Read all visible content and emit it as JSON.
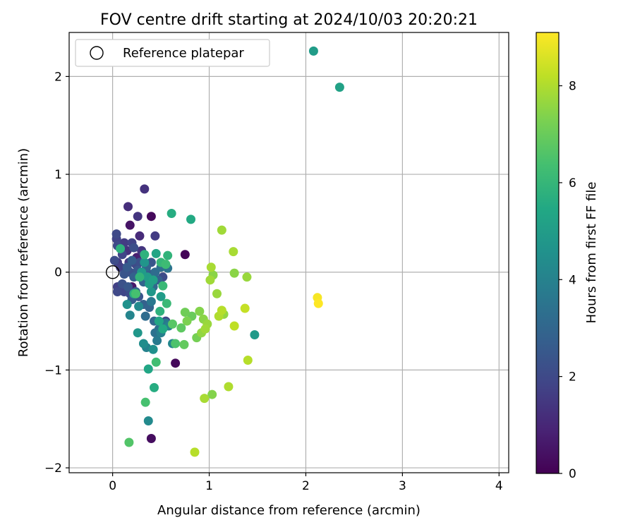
{
  "chart_data": {
    "type": "scatter",
    "title": "FOV centre drift starting at 2024/10/03 20:20:21",
    "xlabel": "Angular distance from reference (arcmin)",
    "ylabel": "Rotation from reference (arcmin)",
    "xlim": [
      -0.45,
      4.1
    ],
    "ylim": [
      -2.05,
      2.45
    ],
    "xticks": [
      0,
      1,
      2,
      3,
      4
    ],
    "yticks": [
      -2,
      -1,
      0,
      1,
      2
    ],
    "xtick_labels": [
      "0",
      "1",
      "2",
      "3",
      "4"
    ],
    "ytick_labels": [
      "−2",
      "−1",
      "0",
      "1",
      "2"
    ],
    "grid": true,
    "legend": {
      "placement": "top-left",
      "label": "Reference platepar",
      "reference_point": [
        0,
        0
      ]
    },
    "colorbar": {
      "label": "Hours from first FF file",
      "range": [
        0,
        9.1
      ],
      "ticks": [
        0,
        2,
        4,
        6,
        8
      ],
      "tick_labels": [
        "0",
        "2",
        "4",
        "6",
        "8"
      ],
      "colormap": [
        "#440154",
        "#482475",
        "#414487",
        "#355f8d",
        "#2a788e",
        "#21918c",
        "#22a884",
        "#44bf70",
        "#7ad151",
        "#bddf26",
        "#fde725"
      ]
    },
    "points": [
      {
        "x": 0.4,
        "y": 0.57,
        "h": 0.2
      },
      {
        "x": 0.75,
        "y": 0.18,
        "h": 0.1
      },
      {
        "x": 0.65,
        "y": -0.93,
        "h": 0.2
      },
      {
        "x": 0.4,
        "y": -1.7,
        "h": 0.3
      },
      {
        "x": 0.18,
        "y": 0.48,
        "h": 0.5
      },
      {
        "x": 0.2,
        "y": -0.15,
        "h": 0.6
      },
      {
        "x": 0.25,
        "y": 0.15,
        "h": 0.8
      },
      {
        "x": 0.33,
        "y": 0.85,
        "h": 1.3
      },
      {
        "x": 0.16,
        "y": 0.67,
        "h": 1.2
      },
      {
        "x": 0.26,
        "y": 0.57,
        "h": 1.4
      },
      {
        "x": 0.28,
        "y": 0.37,
        "h": 1.1
      },
      {
        "x": 0.44,
        "y": 0.37,
        "h": 1.6
      },
      {
        "x": 0.04,
        "y": 0.39,
        "h": 2.0
      },
      {
        "x": 0.04,
        "y": 0.34,
        "h": 1.8
      },
      {
        "x": 0.05,
        "y": 0.27,
        "h": 2.0
      },
      {
        "x": 0.02,
        "y": 0.12,
        "h": 2.1
      },
      {
        "x": 0.05,
        "y": 0.1,
        "h": 1.5
      },
      {
        "x": 0.08,
        "y": 0.05,
        "h": 1.7
      },
      {
        "x": 0.1,
        "y": 0.18,
        "h": 1.9
      },
      {
        "x": 0.12,
        "y": 0.3,
        "h": 1.6
      },
      {
        "x": 0.15,
        "y": 0.22,
        "h": 1.3
      },
      {
        "x": 0.17,
        "y": 0.1,
        "h": 1.5
      },
      {
        "x": 0.2,
        "y": 0.3,
        "h": 1.8
      },
      {
        "x": 0.22,
        "y": 0.25,
        "h": 2.2
      },
      {
        "x": 0.24,
        "y": 0.08,
        "h": 2.0
      },
      {
        "x": 0.12,
        "y": -0.02,
        "h": 2.4
      },
      {
        "x": 0.15,
        "y": 0.05,
        "h": 2.6
      },
      {
        "x": 0.18,
        "y": 0.0,
        "h": 2.3
      },
      {
        "x": 0.2,
        "y": 0.12,
        "h": 2.7
      },
      {
        "x": 0.22,
        "y": -0.05,
        "h": 2.8
      },
      {
        "x": 0.26,
        "y": 0.02,
        "h": 2.5
      },
      {
        "x": 0.28,
        "y": 0.1,
        "h": 2.2
      },
      {
        "x": 0.3,
        "y": 0.22,
        "h": 1.4
      },
      {
        "x": 0.32,
        "y": -0.1,
        "h": 2.9
      },
      {
        "x": 0.35,
        "y": 0.05,
        "h": 3.0
      },
      {
        "x": 0.38,
        "y": -0.02,
        "h": 2.6
      },
      {
        "x": 0.4,
        "y": 0.1,
        "h": 2.4
      },
      {
        "x": 0.42,
        "y": -0.15,
        "h": 3.1
      },
      {
        "x": 0.44,
        "y": 0.0,
        "h": 3.2
      },
      {
        "x": 0.47,
        "y": -0.08,
        "h": 2.8
      },
      {
        "x": 0.5,
        "y": 0.05,
        "h": 3.3
      },
      {
        "x": 0.52,
        "y": -0.05,
        "h": 2.1
      },
      {
        "x": 0.55,
        "y": -0.5,
        "h": 1.9
      },
      {
        "x": 0.57,
        "y": 0.04,
        "h": 3.5
      },
      {
        "x": 0.05,
        "y": -0.15,
        "h": 1.7
      },
      {
        "x": 0.05,
        "y": -0.2,
        "h": 2.0
      },
      {
        "x": 0.1,
        "y": -0.12,
        "h": 2.3
      },
      {
        "x": 0.12,
        "y": -0.2,
        "h": 1.9
      },
      {
        "x": 0.16,
        "y": -0.15,
        "h": 2.5
      },
      {
        "x": 0.18,
        "y": -0.22,
        "h": 2.1
      },
      {
        "x": 0.2,
        "y": -0.28,
        "h": 2.7
      },
      {
        "x": 0.24,
        "y": -0.2,
        "h": 3.0
      },
      {
        "x": 0.27,
        "y": -0.25,
        "h": 2.4
      },
      {
        "x": 0.32,
        "y": -0.33,
        "h": 2.8
      },
      {
        "x": 0.34,
        "y": -0.45,
        "h": 3.2
      },
      {
        "x": 0.38,
        "y": -0.36,
        "h": 2.9
      },
      {
        "x": 0.4,
        "y": -0.3,
        "h": 3.6
      },
      {
        "x": 0.43,
        "y": -0.5,
        "h": 3.1
      },
      {
        "x": 0.44,
        "y": -0.62,
        "h": 3.4
      },
      {
        "x": 0.46,
        "y": -0.7,
        "h": 3.7
      },
      {
        "x": 0.48,
        "y": -0.58,
        "h": 3.3
      },
      {
        "x": 0.5,
        "y": -0.62,
        "h": 3.9
      },
      {
        "x": 0.55,
        "y": -0.52,
        "h": 3.6
      },
      {
        "x": 0.58,
        "y": -0.55,
        "h": 4.0
      },
      {
        "x": 0.62,
        "y": -0.73,
        "h": 4.2
      },
      {
        "x": 0.18,
        "y": -0.44,
        "h": 4.1
      },
      {
        "x": 0.27,
        "y": -0.35,
        "h": 4.3
      },
      {
        "x": 0.32,
        "y": -0.73,
        "h": 4.4
      },
      {
        "x": 0.35,
        "y": -0.77,
        "h": 4.0
      },
      {
        "x": 0.37,
        "y": -1.52,
        "h": 4.3
      },
      {
        "x": 0.42,
        "y": -0.79,
        "h": 4.5
      },
      {
        "x": 0.15,
        "y": -0.33,
        "h": 4.6
      },
      {
        "x": 0.26,
        "y": -0.62,
        "h": 4.8
      },
      {
        "x": 0.3,
        "y": 0.0,
        "h": 4.9
      },
      {
        "x": 0.33,
        "y": 0.1,
        "h": 4.7
      },
      {
        "x": 0.36,
        "y": -0.05,
        "h": 5.0
      },
      {
        "x": 0.38,
        "y": -0.12,
        "h": 5.1
      },
      {
        "x": 0.4,
        "y": -0.2,
        "h": 4.8
      },
      {
        "x": 0.42,
        "y": -0.08,
        "h": 5.2
      },
      {
        "x": 0.45,
        "y": 0.19,
        "h": 5.3
      },
      {
        "x": 0.48,
        "y": -0.5,
        "h": 5.4
      },
      {
        "x": 0.5,
        "y": -0.25,
        "h": 5.0
      },
      {
        "x": 0.52,
        "y": -0.58,
        "h": 5.5
      },
      {
        "x": 0.37,
        "y": -0.99,
        "h": 5.4
      },
      {
        "x": 0.43,
        "y": -1.18,
        "h": 5.6
      },
      {
        "x": 2.08,
        "y": 2.26,
        "h": 5.0
      },
      {
        "x": 2.35,
        "y": 1.89,
        "h": 5.2
      },
      {
        "x": 1.47,
        "y": -0.64,
        "h": 4.9
      },
      {
        "x": 0.61,
        "y": 0.6,
        "h": 5.6
      },
      {
        "x": 0.81,
        "y": 0.54,
        "h": 5.5
      },
      {
        "x": 0.22,
        "y": -0.22,
        "h": 5.7
      },
      {
        "x": 0.28,
        "y": -0.05,
        "h": 5.9
      },
      {
        "x": 0.33,
        "y": 0.18,
        "h": 5.8
      },
      {
        "x": 0.5,
        "y": 0.1,
        "h": 6.0
      },
      {
        "x": 0.52,
        "y": -0.14,
        "h": 6.1
      },
      {
        "x": 0.55,
        "y": 0.08,
        "h": 6.2
      },
      {
        "x": 0.57,
        "y": 0.17,
        "h": 5.9
      },
      {
        "x": 0.49,
        "y": -0.4,
        "h": 5.8
      },
      {
        "x": 0.56,
        "y": -0.32,
        "h": 6.1
      },
      {
        "x": 0.08,
        "y": 0.24,
        "h": 5.8
      },
      {
        "x": 0.24,
        "y": -0.22,
        "h": 6.4
      },
      {
        "x": 0.45,
        "y": -0.92,
        "h": 6.3
      },
      {
        "x": 0.62,
        "y": -0.53,
        "h": 6.7
      },
      {
        "x": 0.65,
        "y": -0.73,
        "h": 6.5
      },
      {
        "x": 0.17,
        "y": -1.74,
        "h": 6.6
      },
      {
        "x": 0.34,
        "y": -1.33,
        "h": 6.4
      },
      {
        "x": 0.71,
        "y": -0.57,
        "h": 6.8
      },
      {
        "x": 0.74,
        "y": -0.74,
        "h": 6.9
      },
      {
        "x": 0.75,
        "y": -0.41,
        "h": 7.1
      },
      {
        "x": 0.77,
        "y": -0.5,
        "h": 7.3
      },
      {
        "x": 0.82,
        "y": -0.45,
        "h": 7.0
      },
      {
        "x": 0.87,
        "y": -0.67,
        "h": 7.2
      },
      {
        "x": 0.9,
        "y": -0.4,
        "h": 7.4
      },
      {
        "x": 0.92,
        "y": -0.62,
        "h": 7.6
      },
      {
        "x": 0.94,
        "y": -0.48,
        "h": 7.5
      },
      {
        "x": 0.96,
        "y": -0.58,
        "h": 7.8
      },
      {
        "x": 0.98,
        "y": -0.53,
        "h": 7.7
      },
      {
        "x": 0.95,
        "y": -1.29,
        "h": 7.9
      },
      {
        "x": 0.85,
        "y": -1.84,
        "h": 8.1
      },
      {
        "x": 1.03,
        "y": -1.25,
        "h": 7.4
      },
      {
        "x": 1.2,
        "y": -1.17,
        "h": 8.0
      },
      {
        "x": 1.01,
        "y": -0.08,
        "h": 7.8
      },
      {
        "x": 1.02,
        "y": 0.05,
        "h": 7.9
      },
      {
        "x": 1.04,
        "y": -0.03,
        "h": 7.5
      },
      {
        "x": 1.08,
        "y": -0.22,
        "h": 7.7
      },
      {
        "x": 1.1,
        "y": -0.45,
        "h": 8.0
      },
      {
        "x": 1.13,
        "y": -0.39,
        "h": 8.1
      },
      {
        "x": 1.15,
        "y": -0.43,
        "h": 7.6
      },
      {
        "x": 1.13,
        "y": 0.43,
        "h": 7.8
      },
      {
        "x": 1.25,
        "y": 0.21,
        "h": 7.9
      },
      {
        "x": 1.26,
        "y": -0.01,
        "h": 7.5
      },
      {
        "x": 1.26,
        "y": -0.55,
        "h": 8.2
      },
      {
        "x": 1.37,
        "y": -0.37,
        "h": 8.3
      },
      {
        "x": 1.39,
        "y": -0.05,
        "h": 7.7
      },
      {
        "x": 1.4,
        "y": -0.9,
        "h": 8.1
      },
      {
        "x": 2.12,
        "y": -0.26,
        "h": 9.0
      },
      {
        "x": 2.13,
        "y": -0.32,
        "h": 9.1
      }
    ]
  }
}
